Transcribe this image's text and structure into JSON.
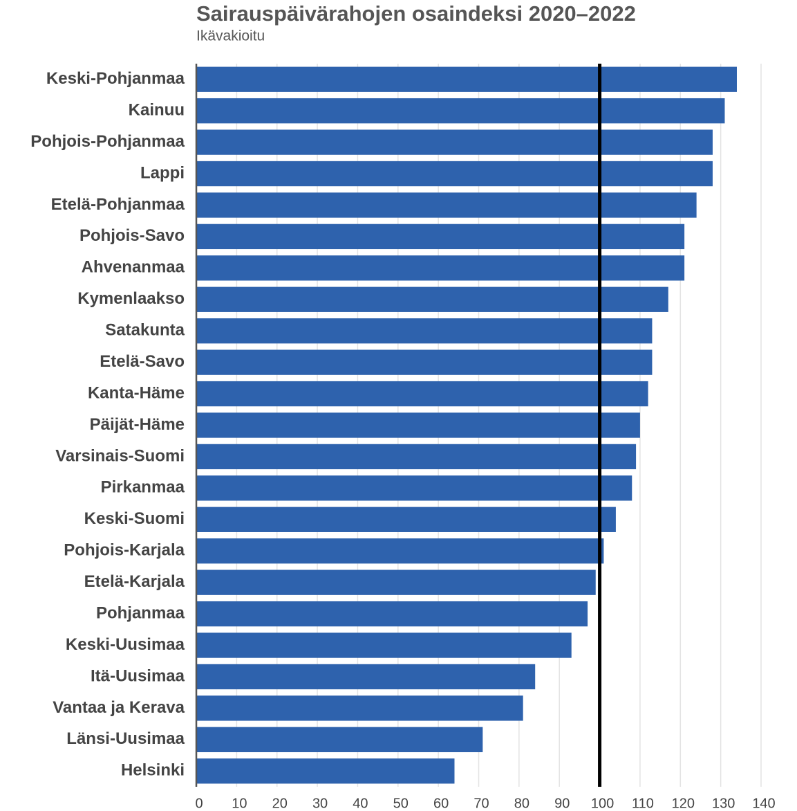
{
  "chart_data": {
    "type": "barh",
    "title": "Sairauspäivärahojen osaindeksi 2020–2022",
    "subtitle": "Ikävakioitu",
    "categories": [
      "Keski-Pohjanmaa",
      "Kainuu",
      "Pohjois-Pohjanmaa",
      "Lappi",
      "Etelä-Pohjanmaa",
      "Pohjois-Savo",
      "Ahvenanmaa",
      "Kymenlaakso",
      "Satakunta",
      "Etelä-Savo",
      "Kanta-Häme",
      "Päijät-Häme",
      "Varsinais-Suomi",
      "Pirkanmaa",
      "Keski-Suomi",
      "Pohjois-Karjala",
      "Etelä-Karjala",
      "Pohjanmaa",
      "Keski-Uusimaa",
      "Itä-Uusimaa",
      "Vantaa ja Kerava",
      "Länsi-Uusimaa",
      "Helsinki"
    ],
    "values": [
      134,
      131,
      128,
      128,
      124,
      121,
      121,
      117,
      113,
      113,
      112,
      110,
      109,
      108,
      104,
      101,
      99,
      97,
      93,
      84,
      81,
      71,
      64
    ],
    "color": "#2e62ad",
    "reference_line": 100,
    "xlim": [
      0,
      140
    ],
    "xticks": [
      0,
      10,
      20,
      30,
      40,
      50,
      60,
      70,
      80,
      90,
      100,
      110,
      120,
      130,
      140
    ],
    "grid": true
  }
}
